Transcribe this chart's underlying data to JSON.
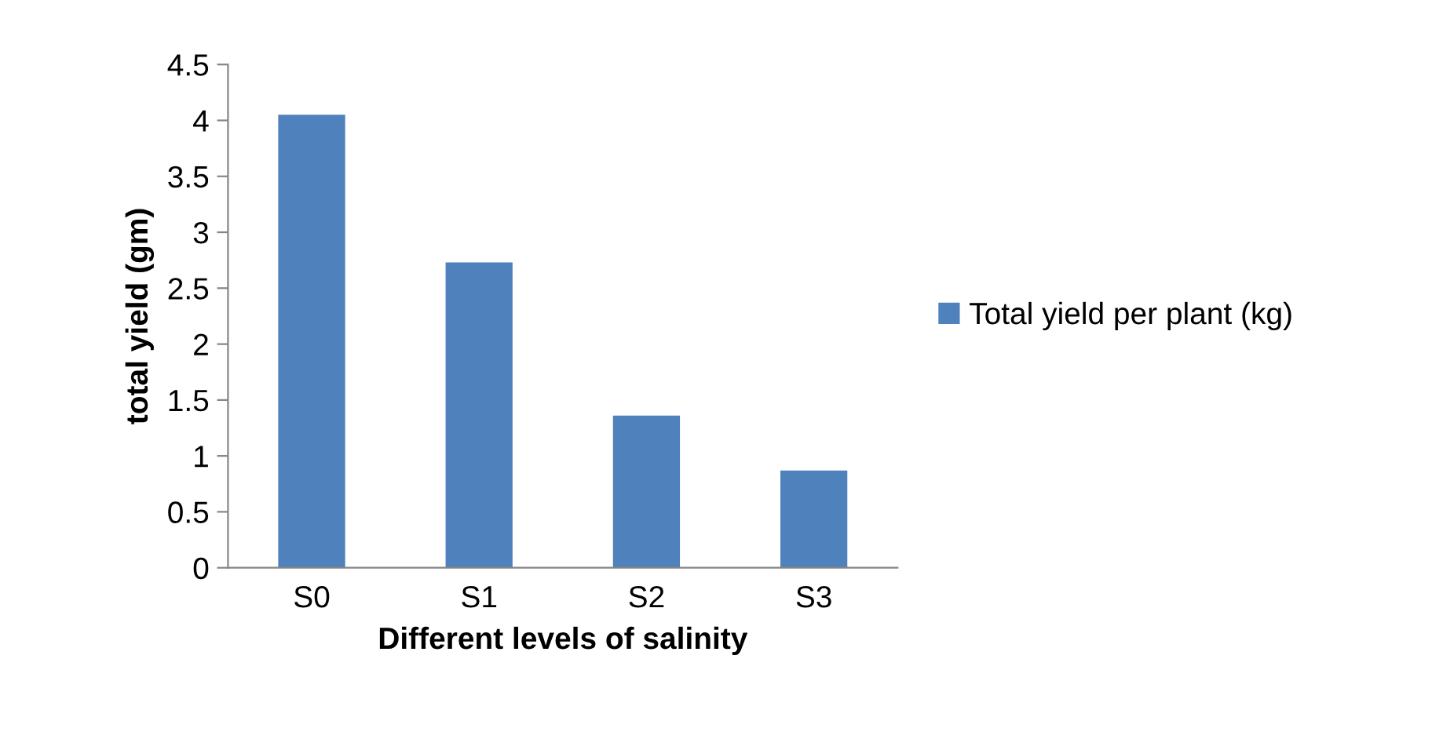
{
  "chart_data": {
    "type": "bar",
    "xlabel": "Different levels of salinity",
    "ylabel": "total yield (gm)",
    "categories": [
      "S0",
      "S1",
      "S2",
      "S3"
    ],
    "series": [
      {
        "name": "Total yield per plant (kg)",
        "color": "#4f81bd",
        "values": [
          4.05,
          2.73,
          1.36,
          0.87
        ]
      }
    ],
    "ylim": [
      0,
      4.5
    ],
    "yticks": [
      0,
      0.5,
      1,
      1.5,
      2,
      2.5,
      3,
      3.5,
      4,
      4.5
    ],
    "grid": false,
    "legend": "right"
  }
}
